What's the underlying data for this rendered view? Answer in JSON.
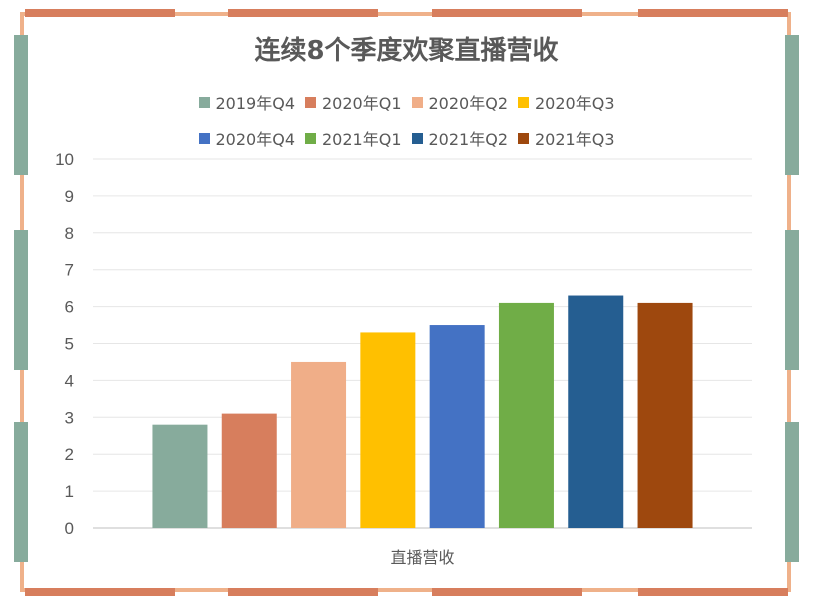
{
  "chart_data": {
    "type": "bar",
    "title": "连续8个季度欢聚直播营收",
    "xlabel": "直播营收",
    "ylabel": "",
    "categories": [
      "直播营收"
    ],
    "ylim": [
      0,
      10
    ],
    "yticks": [
      "0",
      "1",
      "2",
      "3",
      "4",
      "5",
      "6",
      "7",
      "8",
      "9",
      "10"
    ],
    "grid": true,
    "legend_position": "top",
    "series": [
      {
        "name": "2019年Q4",
        "values": [
          2.8
        ],
        "color": "#87ab9c"
      },
      {
        "name": "2020年Q1",
        "values": [
          3.1
        ],
        "color": "#d77e5d"
      },
      {
        "name": "2020年Q2",
        "values": [
          4.5
        ],
        "color": "#f0ae88"
      },
      {
        "name": "2020年Q3",
        "values": [
          5.3
        ],
        "color": "#ffc000"
      },
      {
        "name": "2020年Q4",
        "values": [
          5.5
        ],
        "color": "#4472c4"
      },
      {
        "name": "2021年Q1",
        "values": [
          6.1
        ],
        "color": "#70ad47"
      },
      {
        "name": "2021年Q2",
        "values": [
          6.3
        ],
        "color": "#255e91"
      },
      {
        "name": "2021年Q3",
        "values": [
          6.1
        ],
        "color": "#9e480e"
      }
    ]
  },
  "frame_colors": {
    "border": "#efb18a",
    "accent_dark": "#d77e5d",
    "accent_green": "#87ab9c"
  }
}
